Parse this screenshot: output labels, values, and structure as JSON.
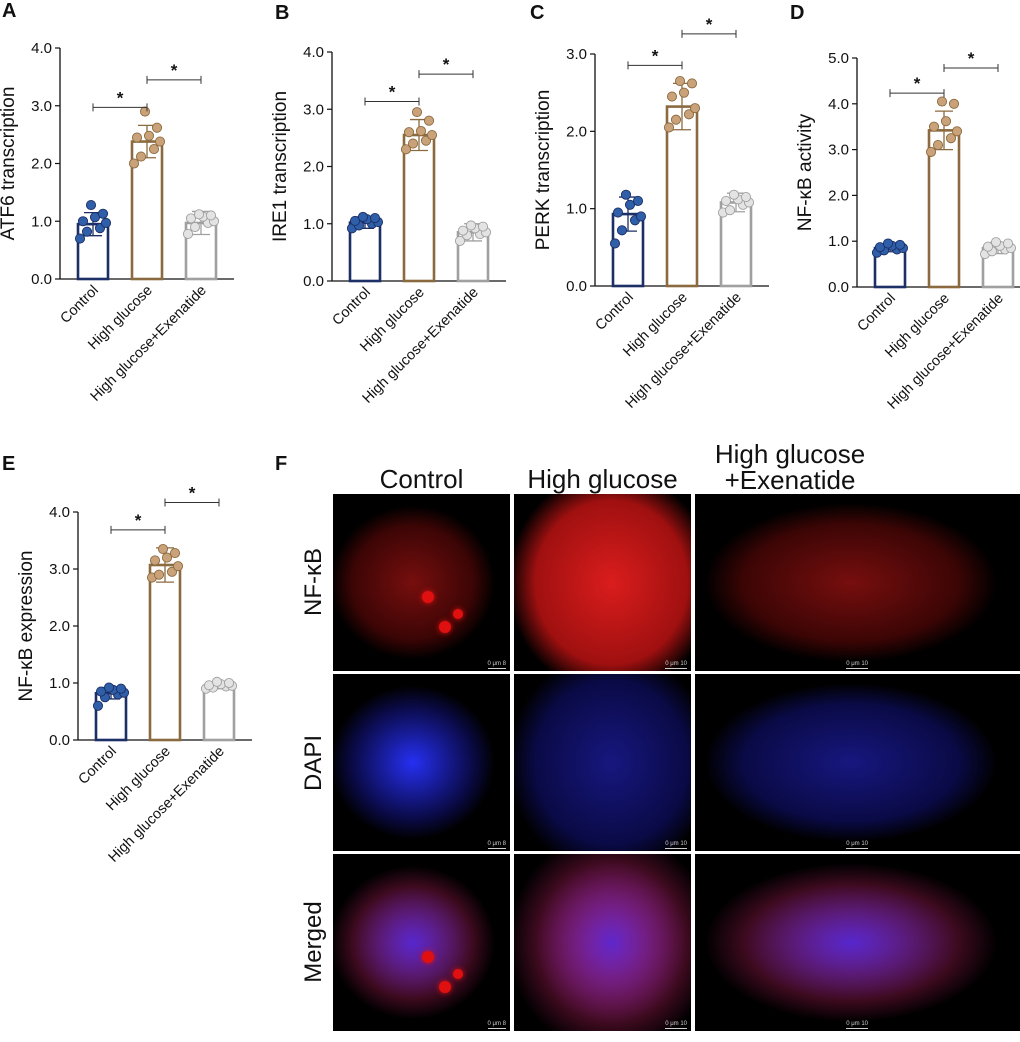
{
  "chart_data": [
    {
      "panel": "A",
      "type": "bar",
      "categories": [
        "Control",
        "High glucose",
        "High glucose+Exenatide"
      ],
      "ylabel": "ATF6 transcription",
      "ylim": [
        0,
        4
      ],
      "yticks": [
        "0.0",
        "1.0",
        "2.0",
        "3.0",
        "4.0"
      ],
      "values": [
        0.95,
        2.38,
        0.97
      ],
      "errors": [
        0.2,
        0.28,
        0.2
      ],
      "points": [
        [
          0.7,
          0.82,
          0.88,
          0.97,
          1.0,
          1.07,
          1.13,
          1.28
        ],
        [
          2.0,
          2.12,
          2.25,
          2.38,
          2.45,
          2.48,
          2.62,
          2.9
        ],
        [
          0.78,
          0.9,
          0.97,
          1.0,
          1.05,
          1.08,
          1.1,
          1.12
        ]
      ],
      "significance": [
        {
          "from": 0,
          "to": 1,
          "label": "*"
        },
        {
          "from": 1,
          "to": 2,
          "label": "*"
        }
      ]
    },
    {
      "panel": "B",
      "type": "bar",
      "categories": [
        "Control",
        "High glucose",
        "High glucose+Exenatide"
      ],
      "ylabel": "IRE1 transcription",
      "ylim": [
        0,
        4
      ],
      "yticks": [
        "0.0",
        "1.0",
        "2.0",
        "3.0",
        "4.0"
      ],
      "values": [
        1.02,
        2.55,
        0.85
      ],
      "errors": [
        0.1,
        0.27,
        0.15
      ],
      "points": [
        [
          0.92,
          0.97,
          1.0,
          1.03,
          1.05,
          1.08,
          1.1,
          1.12
        ],
        [
          2.3,
          2.4,
          2.45,
          2.55,
          2.6,
          2.62,
          2.8,
          2.95
        ],
        [
          0.7,
          0.8,
          0.82,
          0.85,
          0.88,
          0.92,
          0.95,
          0.97
        ]
      ],
      "significance": [
        {
          "from": 0,
          "to": 1,
          "label": "*"
        },
        {
          "from": 1,
          "to": 2,
          "label": "*"
        }
      ]
    },
    {
      "panel": "C",
      "type": "bar",
      "categories": [
        "Control",
        "High glucose",
        "High glucose+Exenatide"
      ],
      "ylabel": "PERK transcription",
      "ylim": [
        0,
        3
      ],
      "yticks": [
        "0.0",
        "1.0",
        "2.0",
        "3.0"
      ],
      "values": [
        0.93,
        2.32,
        1.08
      ],
      "errors": [
        0.22,
        0.3,
        0.12
      ],
      "points": [
        [
          0.55,
          0.72,
          0.85,
          0.9,
          0.95,
          1.05,
          1.1,
          1.18
        ],
        [
          2.05,
          2.15,
          2.22,
          2.3,
          2.45,
          2.5,
          2.62,
          2.65
        ],
        [
          0.95,
          0.98,
          1.05,
          1.08,
          1.1,
          1.12,
          1.15,
          1.18
        ]
      ],
      "significance": [
        {
          "from": 0,
          "to": 1,
          "label": "*"
        },
        {
          "from": 1,
          "to": 2,
          "label": "*"
        }
      ]
    },
    {
      "panel": "D",
      "type": "bar",
      "categories": [
        "Control",
        "High glucose",
        "High glucose+Exenatide"
      ],
      "ylabel": "NF-κB activity",
      "ylim": [
        0,
        5
      ],
      "yticks": [
        "0.0",
        "1.0",
        "2.0",
        "3.0",
        "4.0",
        "5.0"
      ],
      "values": [
        0.85,
        3.42,
        0.85
      ],
      "errors": [
        0.08,
        0.42,
        0.12
      ],
      "points": [
        [
          0.75,
          0.8,
          0.82,
          0.85,
          0.87,
          0.9,
          0.92,
          0.95
        ],
        [
          2.95,
          3.1,
          3.25,
          3.4,
          3.5,
          3.62,
          4.0,
          4.05
        ],
        [
          0.72,
          0.78,
          0.82,
          0.85,
          0.88,
          0.9,
          0.95,
          0.98
        ]
      ],
      "significance": [
        {
          "from": 0,
          "to": 1,
          "label": "*"
        },
        {
          "from": 1,
          "to": 2,
          "label": "*"
        }
      ]
    },
    {
      "panel": "E",
      "type": "bar",
      "categories": [
        "Control",
        "High glucose",
        "High glucose+Exenatide"
      ],
      "ylabel": "NF-κB expression",
      "ylim": [
        0,
        4
      ],
      "yticks": [
        "0.0",
        "1.0",
        "2.0",
        "3.0",
        "4.0"
      ],
      "values": [
        0.82,
        3.07,
        0.95
      ],
      "errors": [
        0.1,
        0.3,
        0.05
      ],
      "points": [
        [
          0.6,
          0.75,
          0.8,
          0.83,
          0.85,
          0.88,
          0.9,
          0.92
        ],
        [
          2.85,
          2.9,
          2.95,
          3.05,
          3.15,
          3.2,
          3.28,
          3.35
        ],
        [
          0.9,
          0.92,
          0.94,
          0.95,
          0.96,
          0.98,
          1.0,
          1.02
        ]
      ],
      "significance": [
        {
          "from": 0,
          "to": 1,
          "label": "*"
        },
        {
          "from": 1,
          "to": 2,
          "label": "*"
        }
      ]
    }
  ],
  "colors": {
    "control_fill": "#2f5fa8",
    "control_edge": "#1c2f66",
    "high_glucose_fill": "#c9a27a",
    "high_glucose_edge": "#8c6a3f",
    "exenatide_fill": "#e3e3e3",
    "exenatide_edge": "#a0a0a0",
    "nfkb_stain": "#e01010",
    "dapi_stain": "#2233ff"
  },
  "panel_labels": {
    "A": "A",
    "B": "B",
    "C": "C",
    "D": "D",
    "E": "E",
    "F": "F"
  },
  "microscopy": {
    "columns": [
      "Control",
      "High glucose",
      "High glucose\n+Exenatide"
    ],
    "rows": [
      "NF-κB",
      "DAPI",
      "Merged"
    ],
    "scale_bars": [
      "0    μm    8",
      "0    μm    10",
      "0    μm    10"
    ]
  }
}
